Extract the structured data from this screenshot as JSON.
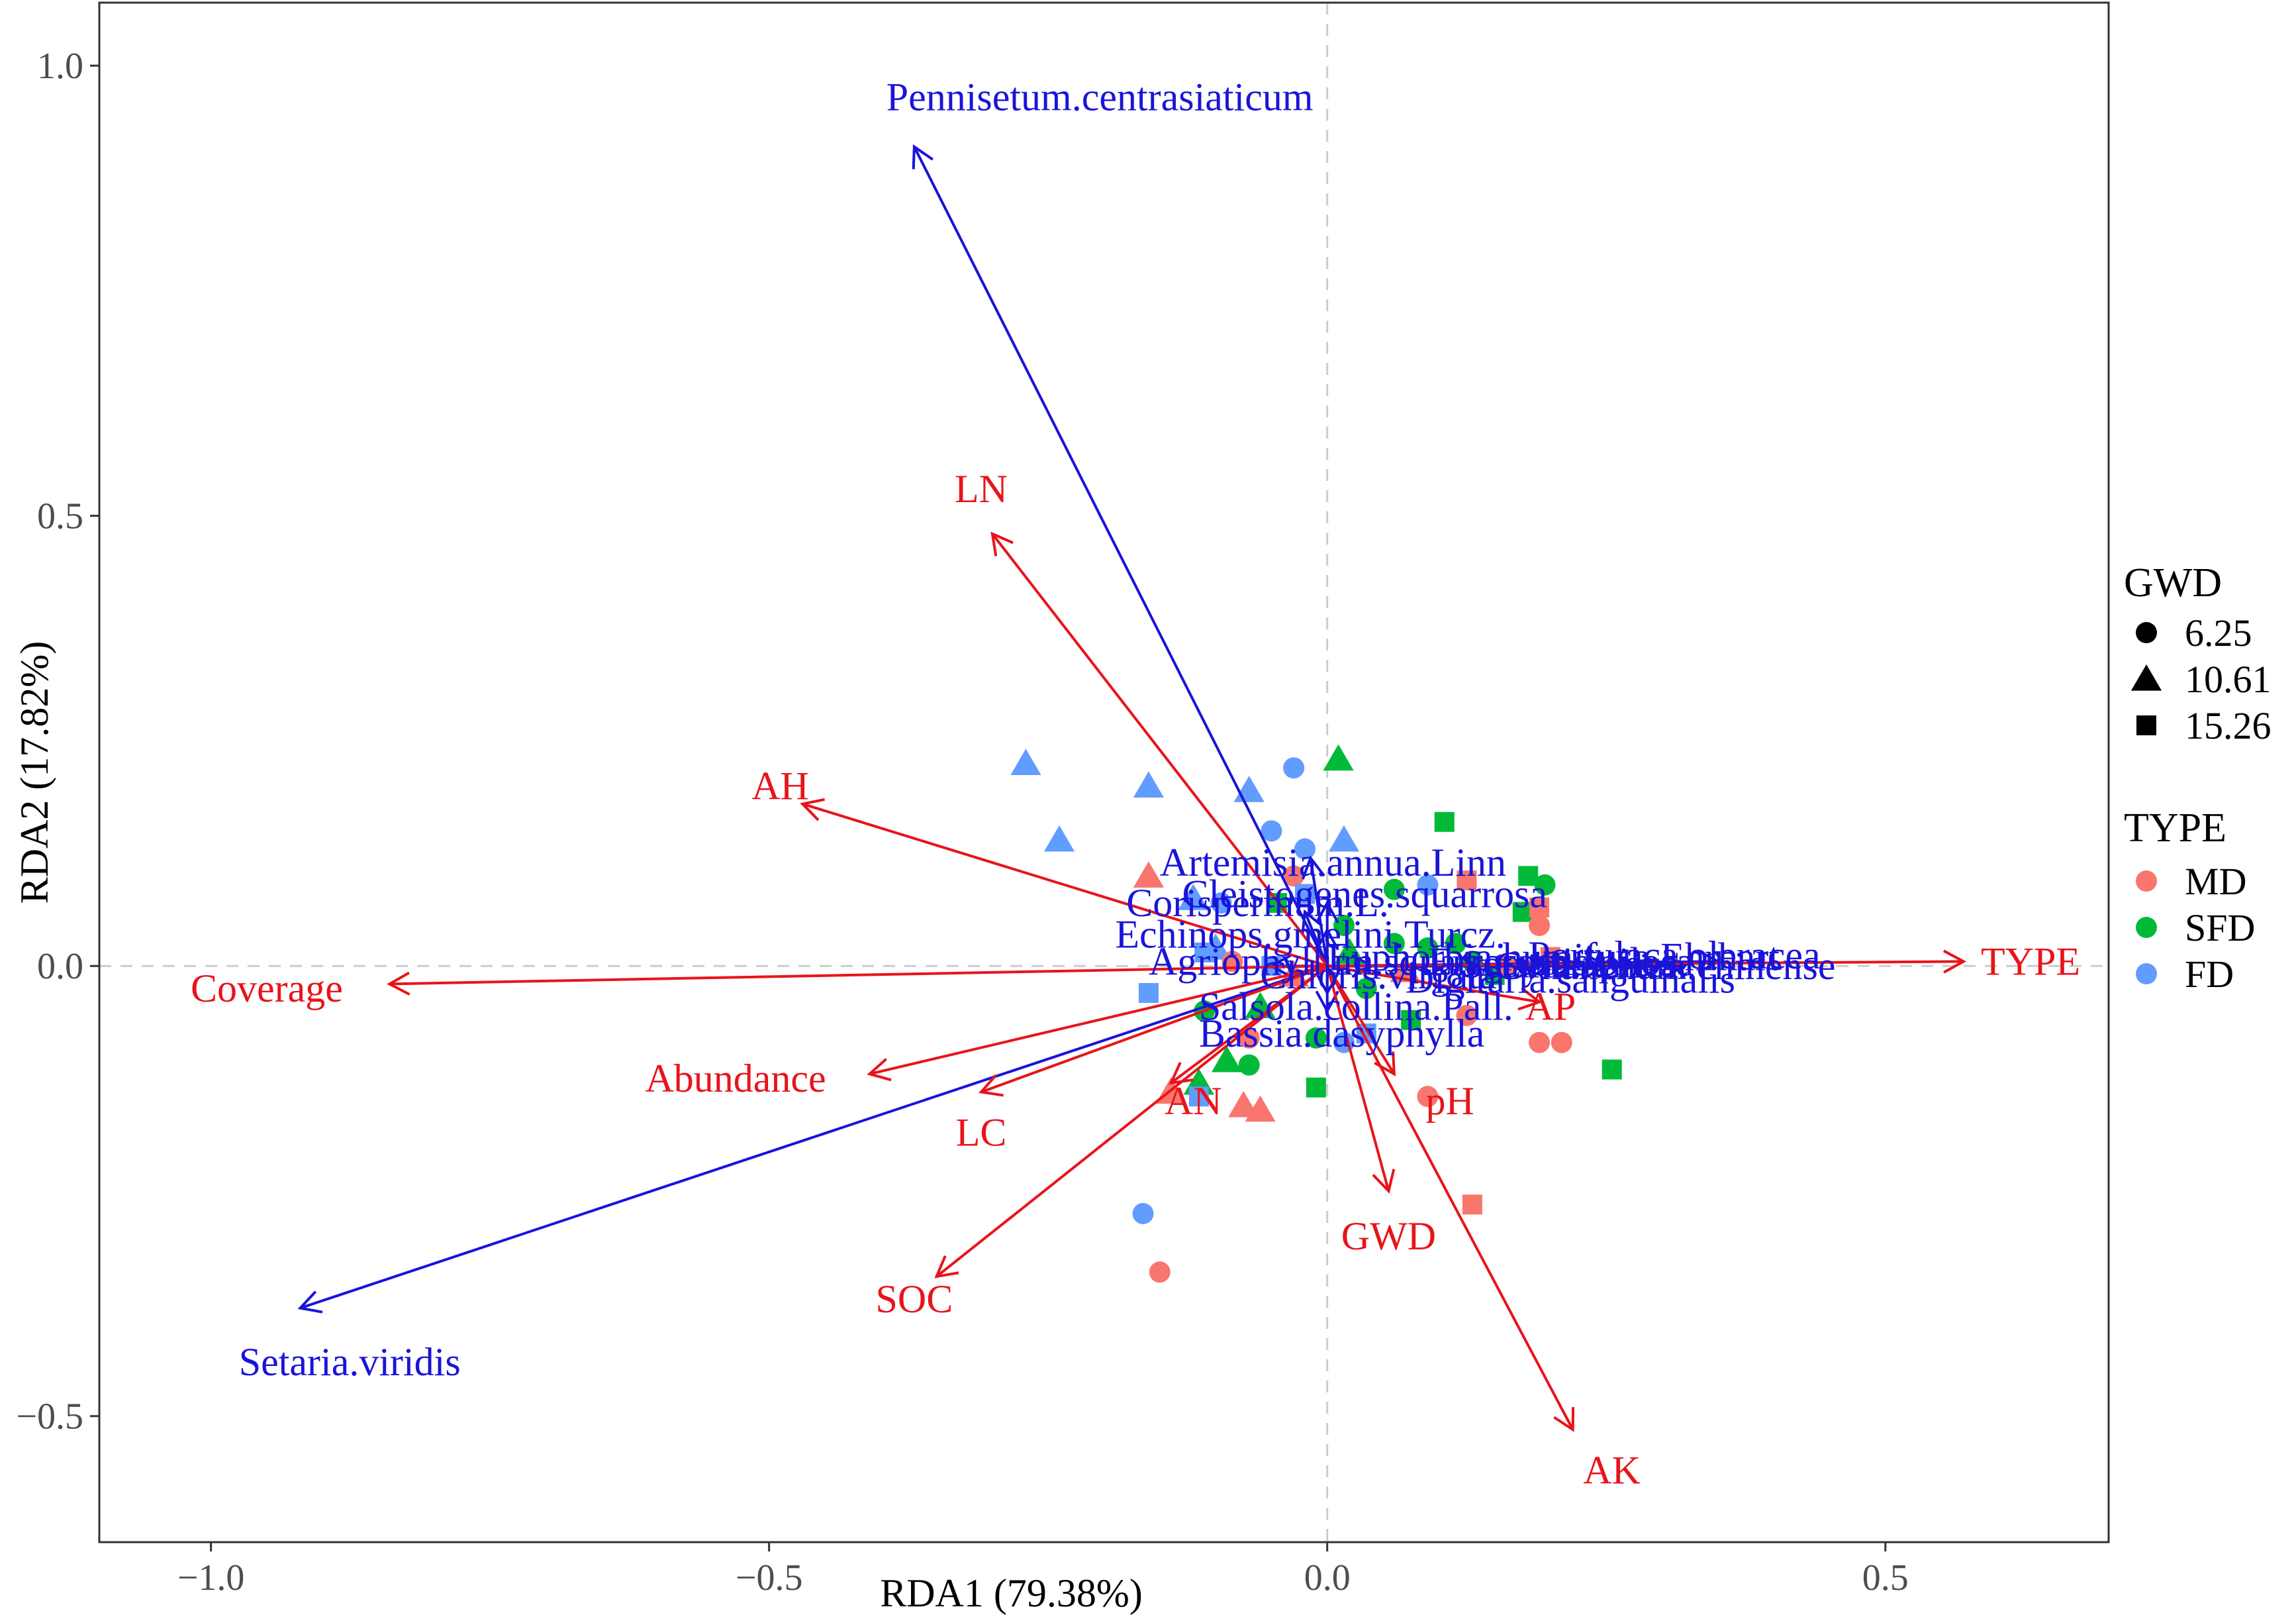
{
  "chart_data": {
    "type": "scatter",
    "xlabel": "RDA1 (79.38%)",
    "ylabel": "RDA2 (17.82%)",
    "xlim": [
      -1.1,
      0.7
    ],
    "ylim": [
      -0.64,
      1.07
    ],
    "x_ticks": [
      -1.0,
      -0.5,
      0.0,
      0.5
    ],
    "x_tick_labels": [
      "−1.0",
      "−0.5",
      "0.0",
      "0.5"
    ],
    "y_ticks": [
      -0.5,
      0.0,
      0.5,
      1.0
    ],
    "y_tick_labels": [
      "−0.5",
      "0.0",
      "0.5",
      "1.0"
    ],
    "grid": false,
    "zero_lines": true,
    "colors": {
      "MD": "#f8766d",
      "SFD": "#00ba38",
      "FD": "#619cff",
      "env": "#e8141b",
      "species": "#1a14d9"
    },
    "env_arrows": [
      {
        "name": "TYPE",
        "x": 0.57,
        "y": 0.005,
        "lx": 0.63,
        "ly": 0.005
      },
      {
        "name": "Coverage",
        "x": -0.84,
        "y": -0.02,
        "lx": -0.95,
        "ly": -0.025
      },
      {
        "name": "AH",
        "x": -0.47,
        "y": 0.18,
        "lx": -0.49,
        "ly": 0.2
      },
      {
        "name": "LN",
        "x": -0.3,
        "y": 0.48,
        "lx": -0.31,
        "ly": 0.53
      },
      {
        "name": "Abundance",
        "x": -0.41,
        "y": -0.12,
        "lx": -0.53,
        "ly": -0.125
      },
      {
        "name": "LC",
        "x": -0.31,
        "y": -0.14,
        "lx": -0.31,
        "ly": -0.185
      },
      {
        "name": "SOC",
        "x": -0.35,
        "y": -0.345,
        "lx": -0.37,
        "ly": -0.37
      },
      {
        "name": "AN",
        "x": -0.14,
        "y": -0.13,
        "lx": -0.12,
        "ly": -0.15
      },
      {
        "name": "pH",
        "x": 0.06,
        "y": -0.12,
        "lx": 0.11,
        "ly": -0.15
      },
      {
        "name": "GWD",
        "x": 0.055,
        "y": -0.25,
        "lx": 0.055,
        "ly": -0.3
      },
      {
        "name": "AK",
        "x": 0.22,
        "y": -0.515,
        "lx": 0.255,
        "ly": -0.56
      },
      {
        "name": "AP",
        "x": 0.19,
        "y": -0.04,
        "lx": 0.2,
        "ly": -0.045
      }
    ],
    "species_arrows": [
      {
        "name": "Pennisetum.centrasiaticum",
        "x": -0.37,
        "y": 0.91,
        "lx": -0.395,
        "ly": 0.965
      },
      {
        "name": "Setaria.viridis",
        "x": -0.92,
        "y": -0.38,
        "lx": -0.975,
        "ly": -0.44
      },
      {
        "name": "Artemisia.annua.Linn",
        "x": -0.015,
        "y": 0.12,
        "lx": -0.15,
        "ly": 0.115
      },
      {
        "name": "Cleistogenes.squarrosa",
        "x": 0.0,
        "y": 0.07,
        "lx": -0.13,
        "ly": 0.08
      },
      {
        "name": "Corispermum.L.",
        "x": -0.02,
        "y": 0.06,
        "lx": -0.18,
        "ly": 0.07
      },
      {
        "name": "Echinops.gmelini.Turcz.",
        "x": 0.0,
        "y": 0.04,
        "lx": -0.19,
        "ly": 0.035
      },
      {
        "name": "Salsola.collina.Pall.",
        "x": 0.0,
        "y": -0.03,
        "lx": -0.115,
        "ly": -0.045
      },
      {
        "name": "Bassia.dasyphylla",
        "x": 0.0,
        "y": -0.05,
        "lx": -0.115,
        "ly": -0.075
      },
      {
        "name": "Agriophyllum.squarrosum",
        "x": -0.05,
        "y": 0.0,
        "lx": -0.16,
        "ly": 0.005
      },
      {
        "name": "Chloris.virgata",
        "x": 0.04,
        "y": 0.0,
        "lx": -0.06,
        "ly": -0.01
      },
      {
        "name": "Digitaria.sanguinalis",
        "x": 0.2,
        "y": 0.0,
        "lx": 0.07,
        "ly": -0.015
      },
      {
        "name": "Eragrostis.pilosa",
        "x": 0.22,
        "y": 0.0,
        "lx": 0.09,
        "ly": 0.005
      },
      {
        "name": "Cynanchum.chinense",
        "x": 0.3,
        "y": 0.0,
        "lx": 0.15,
        "ly": 0.0
      },
      {
        "name": "Portulaca.oleracea",
        "x": 0.32,
        "y": 0.0,
        "lx": 0.18,
        "ly": 0.012
      },
      {
        "name": "Setaria.italica",
        "x": 0.25,
        "y": 0.0,
        "lx": 0.12,
        "ly": 0.002
      },
      {
        "name": "Euphorbia.humifusa.Ehrhart",
        "x": 0.35,
        "y": 0.005,
        "lx": 0.0,
        "ly": 0.01
      }
    ],
    "points": [
      {
        "x": -0.27,
        "y": 0.225,
        "gwd": "10.61",
        "type": "FD"
      },
      {
        "x": -0.16,
        "y": 0.2,
        "gwd": "10.61",
        "type": "FD"
      },
      {
        "x": -0.24,
        "y": 0.14,
        "gwd": "10.61",
        "type": "FD"
      },
      {
        "x": -0.07,
        "y": 0.195,
        "gwd": "10.61",
        "type": "FD"
      },
      {
        "x": -0.03,
        "y": 0.22,
        "gwd": "6.25",
        "type": "FD"
      },
      {
        "x": 0.01,
        "y": 0.23,
        "gwd": "10.61",
        "type": "SFD"
      },
      {
        "x": -0.05,
        "y": 0.15,
        "gwd": "6.25",
        "type": "FD"
      },
      {
        "x": -0.02,
        "y": 0.13,
        "gwd": "6.25",
        "type": "FD"
      },
      {
        "x": 0.015,
        "y": 0.14,
        "gwd": "10.61",
        "type": "FD"
      },
      {
        "x": 0.105,
        "y": 0.16,
        "gwd": "15.26",
        "type": "SFD"
      },
      {
        "x": -0.16,
        "y": 0.1,
        "gwd": "10.61",
        "type": "MD"
      },
      {
        "x": -0.03,
        "y": 0.1,
        "gwd": "6.25",
        "type": "MD"
      },
      {
        "x": 0.06,
        "y": 0.085,
        "gwd": "6.25",
        "type": "SFD"
      },
      {
        "x": 0.09,
        "y": 0.09,
        "gwd": "6.25",
        "type": "FD"
      },
      {
        "x": 0.125,
        "y": 0.095,
        "gwd": "15.26",
        "type": "MD"
      },
      {
        "x": 0.18,
        "y": 0.1,
        "gwd": "15.26",
        "type": "SFD"
      },
      {
        "x": 0.195,
        "y": 0.09,
        "gwd": "6.25",
        "type": "SFD"
      },
      {
        "x": -0.12,
        "y": 0.075,
        "gwd": "10.61",
        "type": "FD"
      },
      {
        "x": -0.095,
        "y": 0.07,
        "gwd": "6.25",
        "type": "FD"
      },
      {
        "x": -0.045,
        "y": 0.07,
        "gwd": "15.26",
        "type": "SFD"
      },
      {
        "x": -0.02,
        "y": 0.08,
        "gwd": "15.26",
        "type": "FD"
      },
      {
        "x": 0.015,
        "y": 0.045,
        "gwd": "6.25",
        "type": "SFD"
      },
      {
        "x": 0.175,
        "y": 0.06,
        "gwd": "15.26",
        "type": "SFD"
      },
      {
        "x": 0.19,
        "y": 0.065,
        "gwd": "15.26",
        "type": "MD"
      },
      {
        "x": 0.19,
        "y": 0.045,
        "gwd": "6.25",
        "type": "MD"
      },
      {
        "x": -0.1,
        "y": 0.02,
        "gwd": "10.61",
        "type": "FD"
      },
      {
        "x": -0.11,
        "y": 0.015,
        "gwd": "15.26",
        "type": "FD"
      },
      {
        "x": -0.085,
        "y": 0.005,
        "gwd": "6.25",
        "type": "MD"
      },
      {
        "x": -0.05,
        "y": 0.0,
        "gwd": "15.26",
        "type": "FD"
      },
      {
        "x": -0.03,
        "y": -0.01,
        "gwd": "10.61",
        "type": "MD"
      },
      {
        "x": 0.02,
        "y": 0.015,
        "gwd": "10.61",
        "type": "SFD"
      },
      {
        "x": 0.06,
        "y": 0.025,
        "gwd": "6.25",
        "type": "SFD"
      },
      {
        "x": 0.09,
        "y": 0.02,
        "gwd": "6.25",
        "type": "SFD"
      },
      {
        "x": 0.115,
        "y": 0.025,
        "gwd": "6.25",
        "type": "SFD"
      },
      {
        "x": 0.13,
        "y": 0.005,
        "gwd": "6.25",
        "type": "SFD"
      },
      {
        "x": 0.15,
        "y": -0.01,
        "gwd": "15.26",
        "type": "SFD"
      },
      {
        "x": 0.16,
        "y": 0.0,
        "gwd": "6.25",
        "type": "MD"
      },
      {
        "x": 0.2,
        "y": 0.01,
        "gwd": "15.26",
        "type": "MD"
      },
      {
        "x": 0.07,
        "y": -0.005,
        "gwd": "10.61",
        "type": "MD"
      },
      {
        "x": -0.16,
        "y": -0.03,
        "gwd": "15.26",
        "type": "FD"
      },
      {
        "x": -0.11,
        "y": -0.05,
        "gwd": "6.25",
        "type": "SFD"
      },
      {
        "x": -0.06,
        "y": -0.045,
        "gwd": "10.61",
        "type": "SFD"
      },
      {
        "x": 0.035,
        "y": -0.025,
        "gwd": "6.25",
        "type": "SFD"
      },
      {
        "x": 0.075,
        "y": -0.06,
        "gwd": "15.26",
        "type": "SFD"
      },
      {
        "x": 0.125,
        "y": -0.055,
        "gwd": "6.25",
        "type": "MD"
      },
      {
        "x": -0.07,
        "y": -0.08,
        "gwd": "6.25",
        "type": "MD"
      },
      {
        "x": -0.01,
        "y": -0.08,
        "gwd": "6.25",
        "type": "SFD"
      },
      {
        "x": 0.035,
        "y": -0.075,
        "gwd": "15.26",
        "type": "FD"
      },
      {
        "x": 0.015,
        "y": -0.085,
        "gwd": "6.25",
        "type": "FD"
      },
      {
        "x": 0.19,
        "y": -0.085,
        "gwd": "6.25",
        "type": "MD"
      },
      {
        "x": 0.21,
        "y": -0.085,
        "gwd": "6.25",
        "type": "MD"
      },
      {
        "x": -0.09,
        "y": -0.105,
        "gwd": "10.61",
        "type": "SFD"
      },
      {
        "x": -0.07,
        "y": -0.11,
        "gwd": "6.25",
        "type": "SFD"
      },
      {
        "x": 0.255,
        "y": -0.115,
        "gwd": "15.26",
        "type": "SFD"
      },
      {
        "x": -0.115,
        "y": -0.13,
        "gwd": "10.61",
        "type": "SFD"
      },
      {
        "x": -0.14,
        "y": -0.14,
        "gwd": "10.61",
        "type": "MD"
      },
      {
        "x": -0.01,
        "y": -0.135,
        "gwd": "15.26",
        "type": "SFD"
      },
      {
        "x": -0.115,
        "y": -0.145,
        "gwd": "15.26",
        "type": "FD"
      },
      {
        "x": -0.075,
        "y": -0.155,
        "gwd": "10.61",
        "type": "MD"
      },
      {
        "x": -0.06,
        "y": -0.16,
        "gwd": "10.61",
        "type": "MD"
      },
      {
        "x": 0.09,
        "y": -0.145,
        "gwd": "6.25",
        "type": "MD"
      },
      {
        "x": 0.13,
        "y": -0.265,
        "gwd": "15.26",
        "type": "MD"
      },
      {
        "x": -0.165,
        "y": -0.275,
        "gwd": "6.25",
        "type": "FD"
      },
      {
        "x": -0.15,
        "y": -0.34,
        "gwd": "6.25",
        "type": "MD"
      }
    ]
  },
  "legend": {
    "gwd_title": "GWD",
    "gwd_items": [
      {
        "label": "6.25",
        "shape": "circle"
      },
      {
        "label": "10.61",
        "shape": "triangle"
      },
      {
        "label": "15.26",
        "shape": "square"
      }
    ],
    "type_title": "TYPE",
    "type_items": [
      {
        "label": "MD",
        "color": "#f8766d"
      },
      {
        "label": "SFD",
        "color": "#00ba38"
      },
      {
        "label": "FD",
        "color": "#619cff"
      }
    ]
  }
}
